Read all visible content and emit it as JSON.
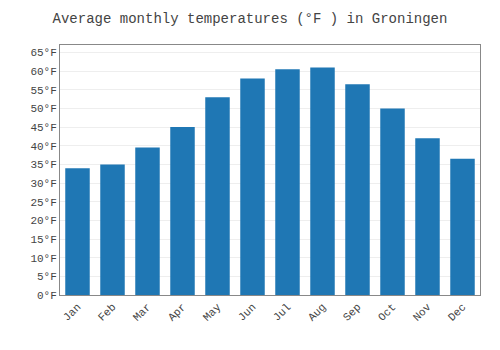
{
  "chart_data": {
    "type": "bar",
    "title": "Average monthly temperatures (°F ) in Groningen",
    "categories": [
      "Jan",
      "Feb",
      "Mar",
      "Apr",
      "May",
      "Jun",
      "Jul",
      "Aug",
      "Sep",
      "Oct",
      "Nov",
      "Dec"
    ],
    "values": [
      34,
      35,
      39.5,
      45,
      53,
      58,
      60.5,
      61,
      56.5,
      50,
      42,
      36.5
    ],
    "ylim": [
      0,
      67
    ],
    "yticks": [
      {
        "value": 0,
        "label": "0°F"
      },
      {
        "value": 5,
        "label": "5°F"
      },
      {
        "value": 10,
        "label": "10°F"
      },
      {
        "value": 15,
        "label": "15°F"
      },
      {
        "value": 20,
        "label": "20°F"
      },
      {
        "value": 25,
        "label": "25°F"
      },
      {
        "value": 30,
        "label": "30°F"
      },
      {
        "value": 35,
        "label": "35°F"
      },
      {
        "value": 40,
        "label": "40°F"
      },
      {
        "value": 45,
        "label": "45°F"
      },
      {
        "value": 50,
        "label": "50°F"
      },
      {
        "value": 55,
        "label": "55°F"
      },
      {
        "value": 60,
        "label": "60°F"
      },
      {
        "value": 65,
        "label": "65°F"
      }
    ],
    "grid": true
  }
}
